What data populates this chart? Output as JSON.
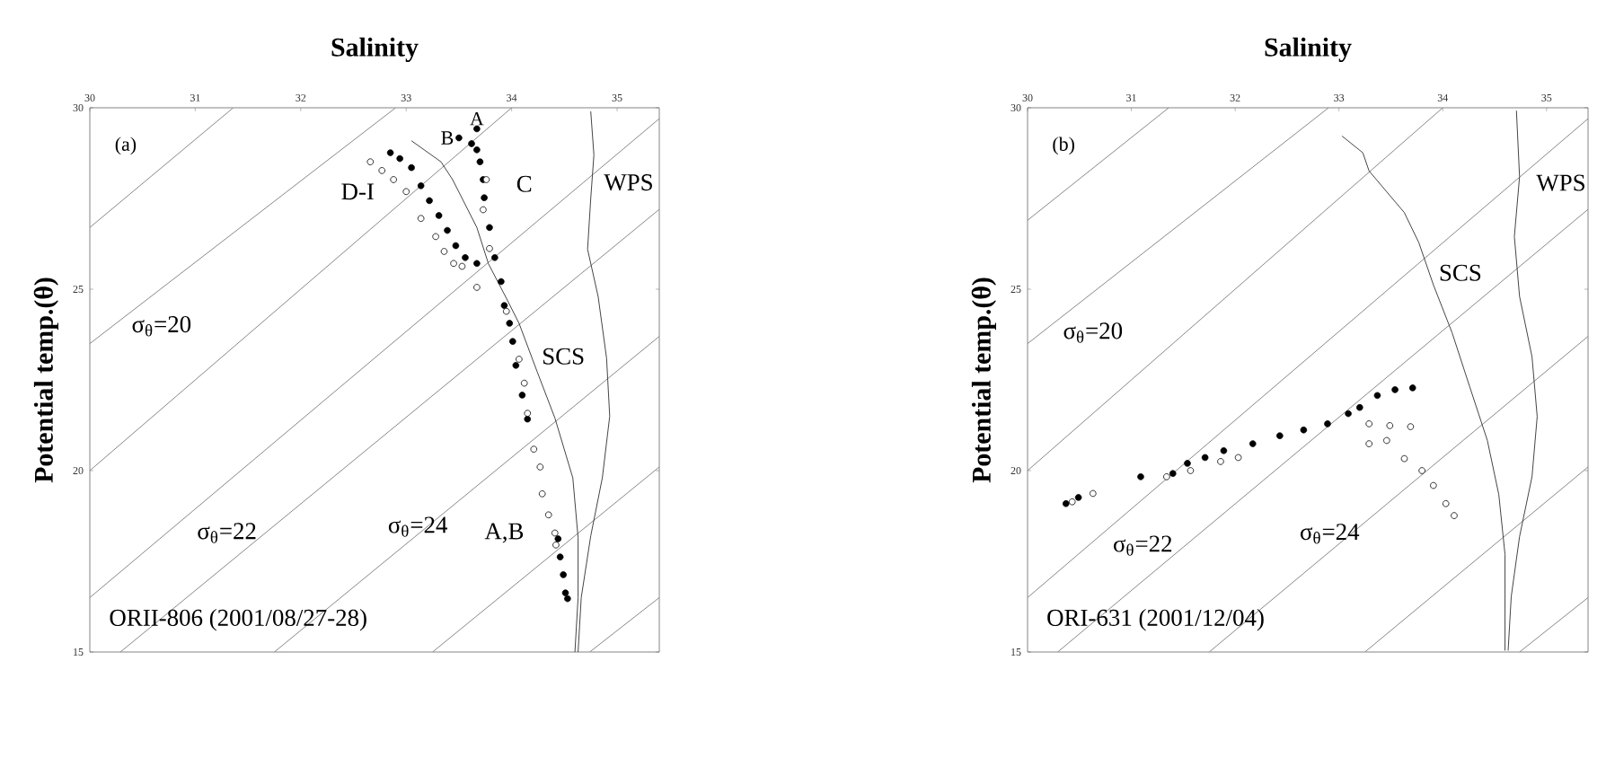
{
  "chart_data": [
    {
      "type": "scatter",
      "xlabel": "Salinity",
      "ylabel": "Potential temp.(θ)",
      "xlim": [
        30,
        35.4
      ],
      "ylim": [
        15,
        30
      ],
      "xticks": [
        30,
        31,
        32,
        33,
        34,
        35
      ],
      "yticks": [
        15,
        20,
        25,
        30
      ],
      "series": [
        {
          "type": "line",
          "color": "#888888",
          "x": [
            30,
            31.36
          ],
          "values": [
            26.7,
            30
          ]
        },
        {
          "type": "line",
          "color": "#888888",
          "x": [
            30,
            32.9
          ],
          "values": [
            23.5,
            30
          ]
        },
        {
          "type": "line",
          "color": "#888888",
          "x": [
            30,
            34.0
          ],
          "values": [
            20.0,
            30
          ]
        },
        {
          "type": "line",
          "color": "#888888",
          "x": [
            30,
            35.4
          ],
          "values": [
            16.5,
            29.7
          ]
        },
        {
          "type": "line",
          "color": "#888888",
          "x": [
            30.29,
            35.4
          ],
          "values": [
            15,
            27.2
          ]
        },
        {
          "type": "line",
          "color": "#888888",
          "x": [
            31.75,
            35.4
          ],
          "values": [
            15,
            23.7
          ]
        },
        {
          "type": "line",
          "color": "#888888",
          "x": [
            33.25,
            35.4
          ],
          "values": [
            15,
            20.1
          ]
        },
        {
          "type": "line",
          "color": "#888888",
          "x": [
            34.74,
            35.4
          ],
          "values": [
            15,
            16.5
          ]
        },
        {
          "type": "line",
          "color": "#444444",
          "x": [
            34.75,
            34.78,
            34.75,
            34.72,
            34.82,
            34.9,
            34.93,
            34.86,
            34.75,
            34.66,
            34.63
          ],
          "values": [
            29.9,
            28.7,
            27.5,
            26.1,
            24.8,
            23.1,
            21.5,
            19.8,
            18.2,
            16.5,
            15
          ]
        },
        {
          "type": "line",
          "color": "#444444",
          "x": [
            33.05,
            33.33,
            33.44,
            33.67,
            33.78,
            33.95,
            34.07,
            34.24,
            34.41,
            34.58,
            34.63,
            34.63,
            34.6
          ],
          "values": [
            29.09,
            28.51,
            28.02,
            26.7,
            25.7,
            24.75,
            24.06,
            22.74,
            21.45,
            19.8,
            18.15,
            16.5,
            15.0
          ]
        },
        {
          "type": "scatter",
          "marker": "circle",
          "color": "#000000",
          "x": [
            33.67,
            33.5,
            33.62,
            33.67,
            33.7,
            33.73,
            33.74,
            33.79,
            33.84,
            33.9,
            33.93,
            33.98,
            34.01,
            34.04,
            34.1,
            34.15,
            34.44,
            34.46,
            34.49,
            34.51,
            34.53,
            32.85,
            32.94,
            33.05,
            33.14,
            33.22,
            33.31,
            33.39,
            33.47,
            33.56,
            33.67
          ],
          "values": [
            29.42,
            29.17,
            29.01,
            28.84,
            28.51,
            28.02,
            27.52,
            26.7,
            25.87,
            25.21,
            24.55,
            24.06,
            23.56,
            22.9,
            22.08,
            21.42,
            18.12,
            17.62,
            17.13,
            16.63,
            16.47,
            28.76,
            28.6,
            28.35,
            27.85,
            27.44,
            27.03,
            26.62,
            26.2,
            25.87,
            25.71
          ]
        },
        {
          "type": "scatter",
          "marker": "circle",
          "color": "#ffffff",
          "x": [
            32.66,
            32.77,
            32.88,
            33.0,
            33.14,
            33.28,
            33.36,
            33.45,
            33.53,
            33.67,
            33.79,
            33.76,
            33.73,
            33.95,
            34.07,
            34.12,
            34.15,
            34.21,
            34.27,
            34.29,
            34.35,
            34.41,
            34.42
          ],
          "values": [
            28.51,
            28.27,
            28.02,
            27.69,
            26.95,
            26.45,
            26.04,
            25.71,
            25.63,
            25.05,
            26.12,
            28.02,
            27.19,
            24.39,
            23.07,
            22.41,
            21.58,
            20.59,
            20.1,
            19.36,
            18.78,
            18.28,
            17.95
          ]
        }
      ],
      "annotations": [
        "(a)",
        "ORII-806 (2001/08/27-28)",
        {
          "text": "A",
          "x": 33.67,
          "y": 29.7
        },
        {
          "text": "B",
          "x": 33.39,
          "y": 29.17
        },
        "C",
        "D-I",
        "WPS",
        "SCS",
        "σ$_{θ}$=20",
        "σ$_{θ}$=22",
        "σ$_{θ}$=24",
        "A,B"
      ]
    },
    {
      "type": "scatter",
      "xlabel": "Salinity",
      "ylabel": "Potential temp.(θ)",
      "xlim": [
        30,
        35.4
      ],
      "ylim": [
        15,
        30
      ],
      "xticks": [
        30,
        31,
        32,
        33,
        34,
        35
      ],
      "yticks": [
        15,
        20,
        25,
        30
      ],
      "series": [
        {
          "type": "line",
          "color": "#888888",
          "x": [
            30,
            31.36
          ],
          "values": [
            26.9,
            30
          ]
        },
        {
          "type": "line",
          "color": "#888888",
          "x": [
            30,
            32.9
          ],
          "values": [
            23.5,
            30
          ]
        },
        {
          "type": "line",
          "color": "#888888",
          "x": [
            30,
            34.0
          ],
          "values": [
            20.0,
            30
          ]
        },
        {
          "type": "line",
          "color": "#888888",
          "x": [
            30,
            35.4
          ],
          "values": [
            16.5,
            29.7
          ]
        },
        {
          "type": "line",
          "color": "#888888",
          "x": [
            30.29,
            35.4
          ],
          "values": [
            15,
            27.2
          ]
        },
        {
          "type": "line",
          "color": "#888888",
          "x": [
            31.75,
            35.4
          ],
          "values": [
            15,
            23.7
          ]
        },
        {
          "type": "line",
          "color": "#888888",
          "x": [
            33.25,
            35.4
          ],
          "values": [
            15,
            20.1
          ]
        },
        {
          "type": "line",
          "color": "#888888",
          "x": [
            34.74,
            35.4
          ],
          "values": [
            15,
            16.5
          ]
        },
        {
          "type": "line",
          "color": "#444444",
          "x": [
            34.71,
            34.74,
            34.69,
            34.74,
            34.86,
            34.91,
            34.86,
            34.74,
            34.66,
            34.63
          ],
          "values": [
            29.92,
            28.1,
            26.45,
            24.8,
            23.14,
            21.49,
            19.83,
            18.18,
            16.53,
            15.04
          ]
        },
        {
          "type": "line",
          "color": "#444444",
          "x": [
            33.03,
            33.23,
            33.29,
            33.63,
            33.77,
            33.91,
            34.09,
            34.26,
            34.43,
            34.54,
            34.6,
            34.6
          ],
          "values": [
            29.22,
            28.76,
            28.26,
            27.11,
            26.28,
            25.12,
            23.8,
            22.31,
            20.83,
            19.34,
            17.69,
            15.04
          ]
        },
        {
          "type": "scatter",
          "marker": "circle",
          "color": "#000000",
          "x": [
            30.37,
            30.49,
            31.09,
            31.4,
            31.54,
            31.71,
            31.89,
            32.17,
            32.43,
            32.66,
            32.89,
            33.09,
            33.2,
            33.37,
            33.54,
            33.71
          ],
          "values": [
            19.09,
            19.26,
            19.83,
            19.92,
            20.2,
            20.36,
            20.55,
            20.74,
            20.96,
            21.12,
            21.29,
            21.57,
            21.74,
            22.07,
            22.23,
            22.28
          ]
        },
        {
          "type": "scatter",
          "marker": "circle",
          "color": "#ffffff",
          "x": [
            30.43,
            30.63,
            31.34,
            31.57,
            31.86,
            32.03,
            33.29,
            33.49,
            33.69,
            33.29,
            33.46,
            33.63,
            33.8,
            33.91,
            34.03,
            34.11
          ],
          "values": [
            19.14,
            19.37,
            19.83,
            20.0,
            20.25,
            20.36,
            21.29,
            21.24,
            21.21,
            20.74,
            20.83,
            20.33,
            20.0,
            19.59,
            19.09,
            18.76
          ]
        }
      ],
      "annotations": [
        "(b)",
        "ORI-631 (2001/12/04)",
        "WPS",
        "SCS",
        "σ$_{θ}$=20",
        "σ$_{θ}$=22",
        "σ$_{θ}$=24"
      ]
    }
  ]
}
